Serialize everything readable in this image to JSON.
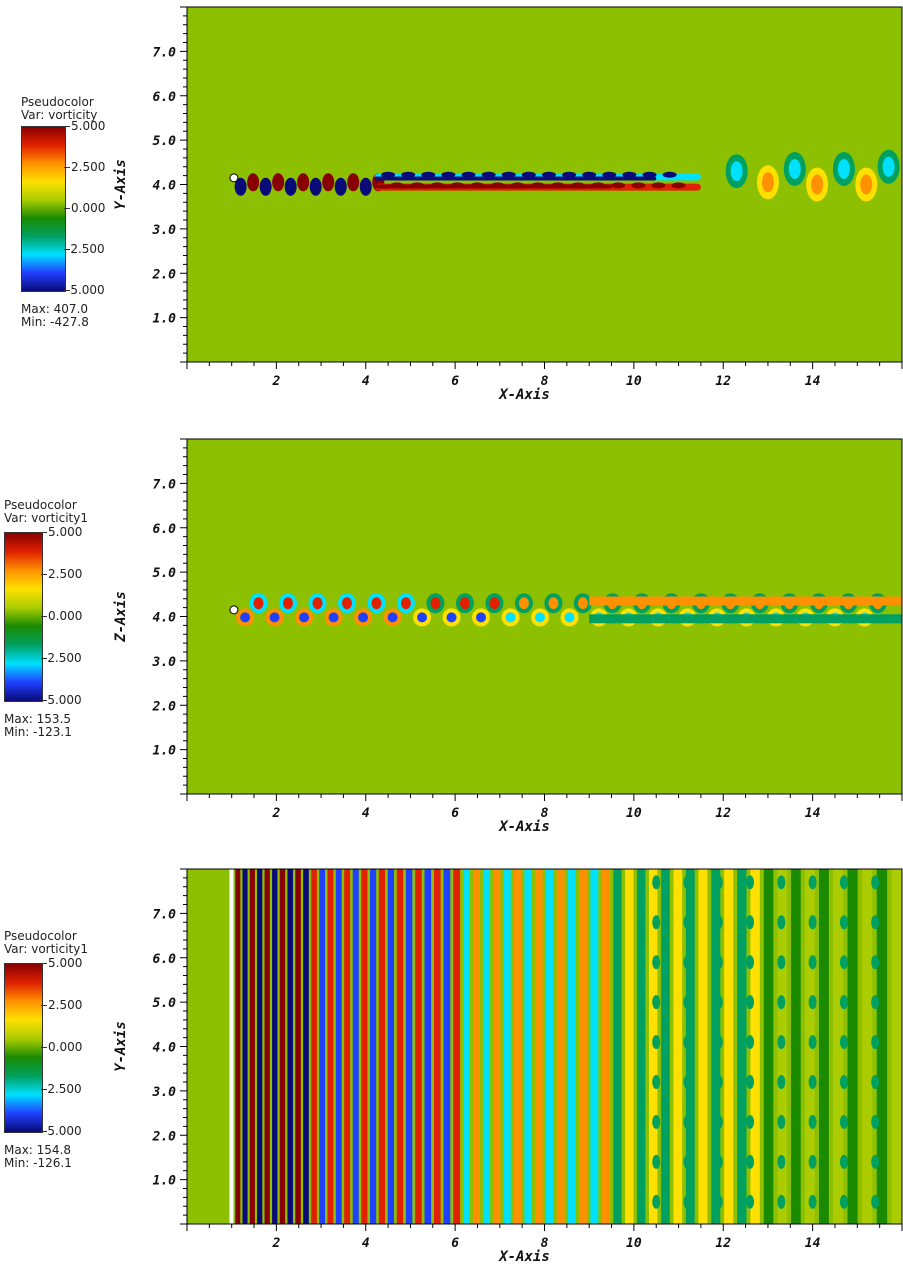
{
  "colors": {
    "background": "#8cc000",
    "colormap": [
      "#0a0a78",
      "#2040ff",
      "#00e0ff",
      "#00a060",
      "#1a8a00",
      "#aacc00",
      "#ffe000",
      "#ff9000",
      "#e02000",
      "#880000"
    ]
  },
  "chart_data": [
    {
      "type": "heatmap",
      "legend": {
        "title": "Pseudocolor",
        "var": "Var: vorticity",
        "ticks": [
          "5.000",
          "2.500",
          "0.000",
          "-2.500",
          "-5.000"
        ],
        "max": "Max:  407.0",
        "min": "Min: -427.8"
      },
      "xlabel": "X-Axis",
      "ylabel": "Y-Axis",
      "xticks": [
        "2",
        "4",
        "6",
        "8",
        "10",
        "12",
        "14"
      ],
      "yticks": [
        "7.0",
        "6.0",
        "5.0",
        "4.0",
        "3.0",
        "2.0",
        "1.0"
      ],
      "xlim": [
        0,
        16
      ],
      "ylim": [
        0,
        8
      ],
      "clim": [
        -5,
        5
      ],
      "pattern": "wake-xy",
      "wake_center_y": 4.0
    },
    {
      "type": "heatmap",
      "legend": {
        "title": "Pseudocolor",
        "var": "Var: vorticity1",
        "ticks": [
          "5.000",
          "2.500",
          "0.000",
          "-2.500",
          "-5.000"
        ],
        "max": "Max:  153.5",
        "min": "Min: -123.1"
      },
      "xlabel": "X-Axis",
      "ylabel": "Z-Axis",
      "xticks": [
        "2",
        "4",
        "6",
        "8",
        "10",
        "12",
        "14"
      ],
      "yticks": [
        "7.0",
        "6.0",
        "5.0",
        "4.0",
        "3.0",
        "2.0",
        "1.0"
      ],
      "xlim": [
        0,
        16
      ],
      "ylim": [
        0,
        8
      ],
      "clim": [
        -5,
        5
      ],
      "pattern": "wake-xz",
      "wake_center_y": 4.0
    },
    {
      "type": "heatmap",
      "legend": {
        "title": "Pseudocolor",
        "var": "Var: vorticity1",
        "ticks": [
          "5.000",
          "2.500",
          "0.000",
          "-2.500",
          "-5.000"
        ],
        "max": "Max:  154.8",
        "min": "Min: -126.1"
      },
      "xlabel": "X-Axis",
      "ylabel": "Y-Axis",
      "xticks": [
        "2",
        "4",
        "6",
        "8",
        "10",
        "12",
        "14"
      ],
      "yticks": [
        "7.0",
        "6.0",
        "5.0",
        "4.0",
        "3.0",
        "2.0",
        "1.0"
      ],
      "xlim": [
        0,
        16
      ],
      "ylim": [
        0,
        8
      ],
      "clim": [
        -5,
        5
      ],
      "pattern": "bands"
    }
  ]
}
